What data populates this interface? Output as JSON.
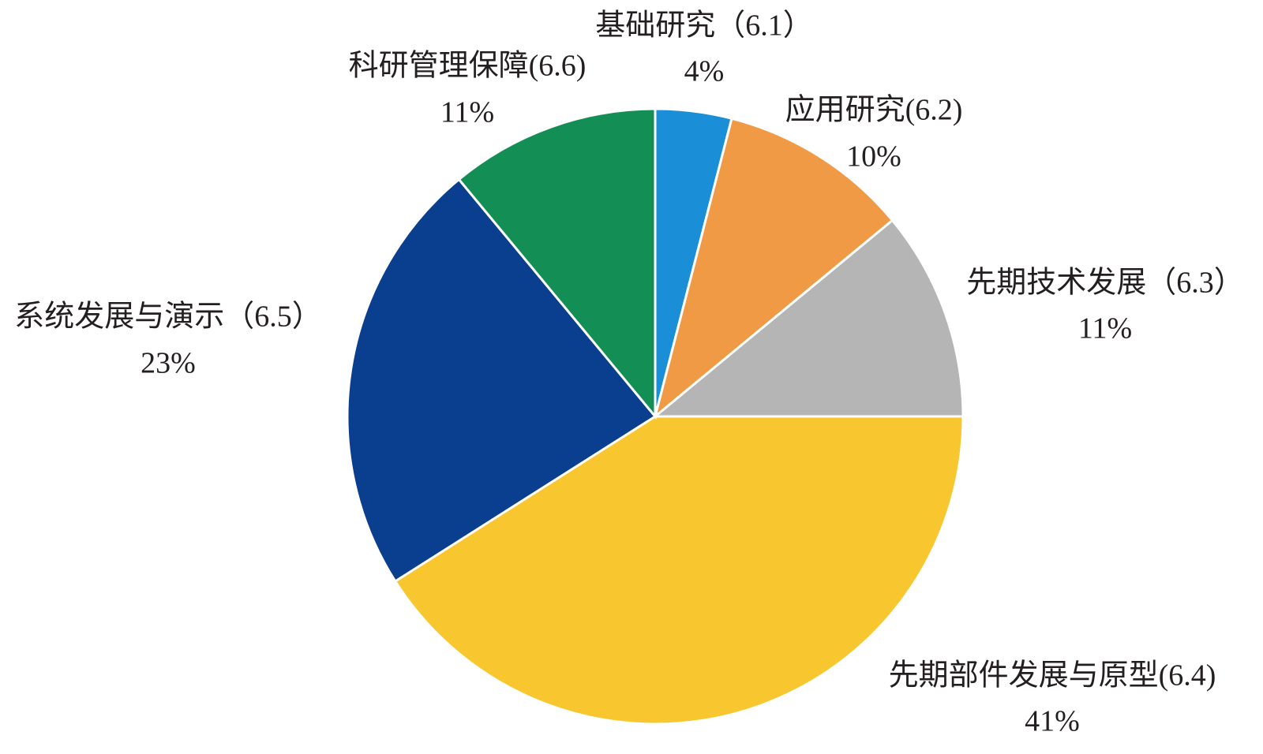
{
  "chart_data": {
    "type": "pie",
    "categories": [
      "基础研究（6.1）",
      "应用研究(6.2)",
      "先期技术发展（6.3）",
      "先期部件发展与原型(6.4)",
      "系统发展与演示（6.5）",
      "科研管理保障(6.6)"
    ],
    "values": [
      4,
      10,
      11,
      41,
      23,
      11
    ],
    "value_labels": [
      "4%",
      "10%",
      "11%",
      "41%",
      "23%",
      "11%"
    ],
    "colors": [
      "#1a8ed6",
      "#f09a45",
      "#b5b5b5",
      "#f8c62e",
      "#0a3f8f",
      "#138f55"
    ]
  }
}
